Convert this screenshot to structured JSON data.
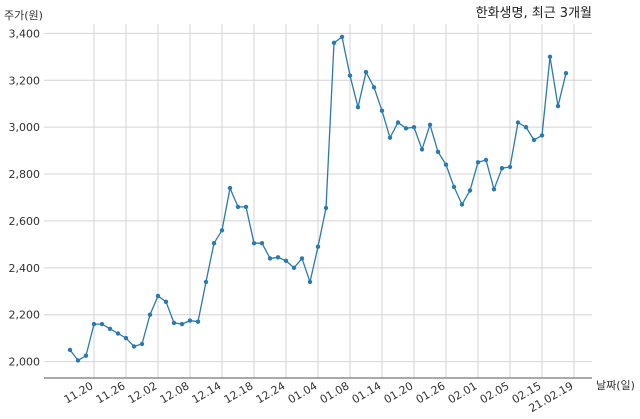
{
  "chart_data": {
    "type": "line",
    "title": "한화생명, 최근 3개월",
    "ylabel": "주가(원)",
    "xlabel": "날짜(일)",
    "ylim": [
      1930,
      3440
    ],
    "y_ticks": [
      2000,
      2200,
      2400,
      2600,
      2800,
      3000,
      3200,
      3400
    ],
    "y_tick_labels": [
      "2,000",
      "2,200",
      "2,400",
      "2,600",
      "2,800",
      "3,000",
      "3,200",
      "3,400"
    ],
    "x_tick_labels": [
      "11.20",
      "11.26",
      "12.02",
      "12.08",
      "12.14",
      "12.18",
      "12.24",
      "01.04",
      "01.08",
      "01.14",
      "01.20",
      "01.26",
      "02.01",
      "02.05",
      "02.15",
      "21.02.19"
    ],
    "x_tick_indices": [
      3,
      7,
      11,
      15,
      19,
      23,
      27,
      31,
      35,
      39,
      43,
      47,
      51,
      55,
      59,
      63
    ],
    "grid": true,
    "series": [
      {
        "color": "#2a7ab0",
        "values": [
          2050,
          2005,
          2025,
          2160,
          2160,
          2140,
          2120,
          2100,
          2065,
          2075,
          2200,
          2280,
          2255,
          2165,
          2160,
          2175,
          2170,
          2340,
          2505,
          2560,
          2740,
          2660,
          2660,
          2505,
          2505,
          2440,
          2445,
          2430,
          2400,
          2440,
          2340,
          2490,
          2655,
          3360,
          3385,
          3220,
          3085,
          3235,
          3170,
          3070,
          2955,
          3020,
          2995,
          3000,
          2905,
          3010,
          2895,
          2840,
          2745,
          2670,
          2730,
          2850,
          2860,
          2735,
          2825,
          2830,
          3020,
          3000,
          2945,
          2965,
          3300,
          3090,
          3230
        ]
      }
    ]
  }
}
